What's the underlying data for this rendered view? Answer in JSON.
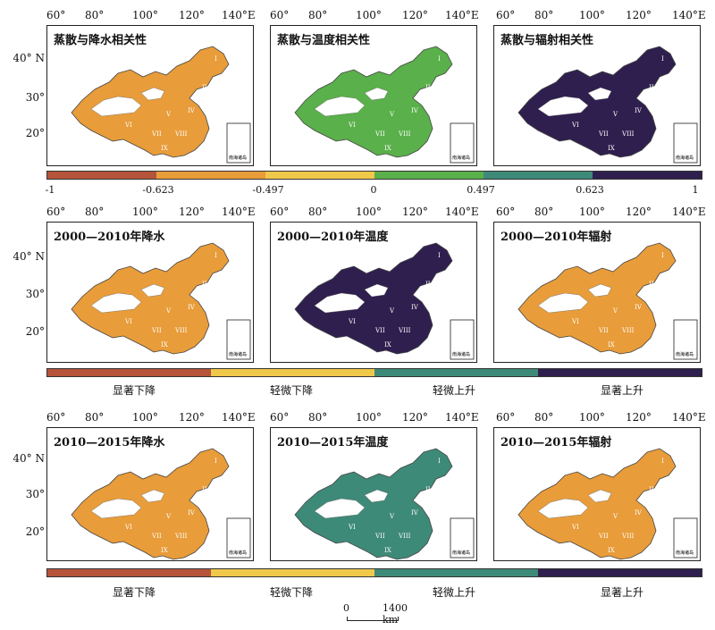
{
  "colors": {
    "c1": "#b5543b",
    "c2": "#e89c3a",
    "c3": "#f0c84a",
    "c4": "#5ab04a",
    "c5": "#3e8a78",
    "c6": "#2f1f4f",
    "map_bg": "#f2e8c8",
    "desert": "#ffffff"
  },
  "panels": {
    "p1": {
      "title": "蒸散与降水相关性",
      "dominant": "c2"
    },
    "p2": {
      "title": "蒸散与温度相关性",
      "dominant": "c4"
    },
    "p3": {
      "title": "蒸散与辐射相关性",
      "dominant": "c6"
    },
    "p4": {
      "title": "2000—2010年降水",
      "dominant": "c2"
    },
    "p5": {
      "title": "2000—2010年温度",
      "dominant": "c6"
    },
    "p6": {
      "title": "2000—2010年辐射",
      "dominant": "c2"
    },
    "p7": {
      "title": "2010—2015年降水",
      "dominant": "c2"
    },
    "p8": {
      "title": "2010—2015年温度",
      "dominant": "c5"
    },
    "p9": {
      "title": "2010—2015年辐射",
      "dominant": "c2"
    }
  },
  "lon_labels": [
    "60°",
    "80°",
    "100°",
    "120°",
    "140°E"
  ],
  "lat_labels": [
    "40° N",
    "30°",
    "20°"
  ],
  "corr_legend": {
    "ticks": [
      "-1",
      "-0.623",
      "-0.497",
      "0",
      "0.497",
      "0.623",
      "1"
    ]
  },
  "trend_legend": {
    "classes": [
      "显著下降",
      "轻微下降",
      "轻微上升",
      "显著上升"
    ]
  },
  "scale_bar": {
    "left_label": "0",
    "right_label": "1400 km"
  },
  "inset_label": "南海诸岛",
  "region_labels": [
    "I",
    "II",
    "III",
    "IV",
    "V",
    "VI",
    "VII",
    "VIII",
    "IX"
  ]
}
